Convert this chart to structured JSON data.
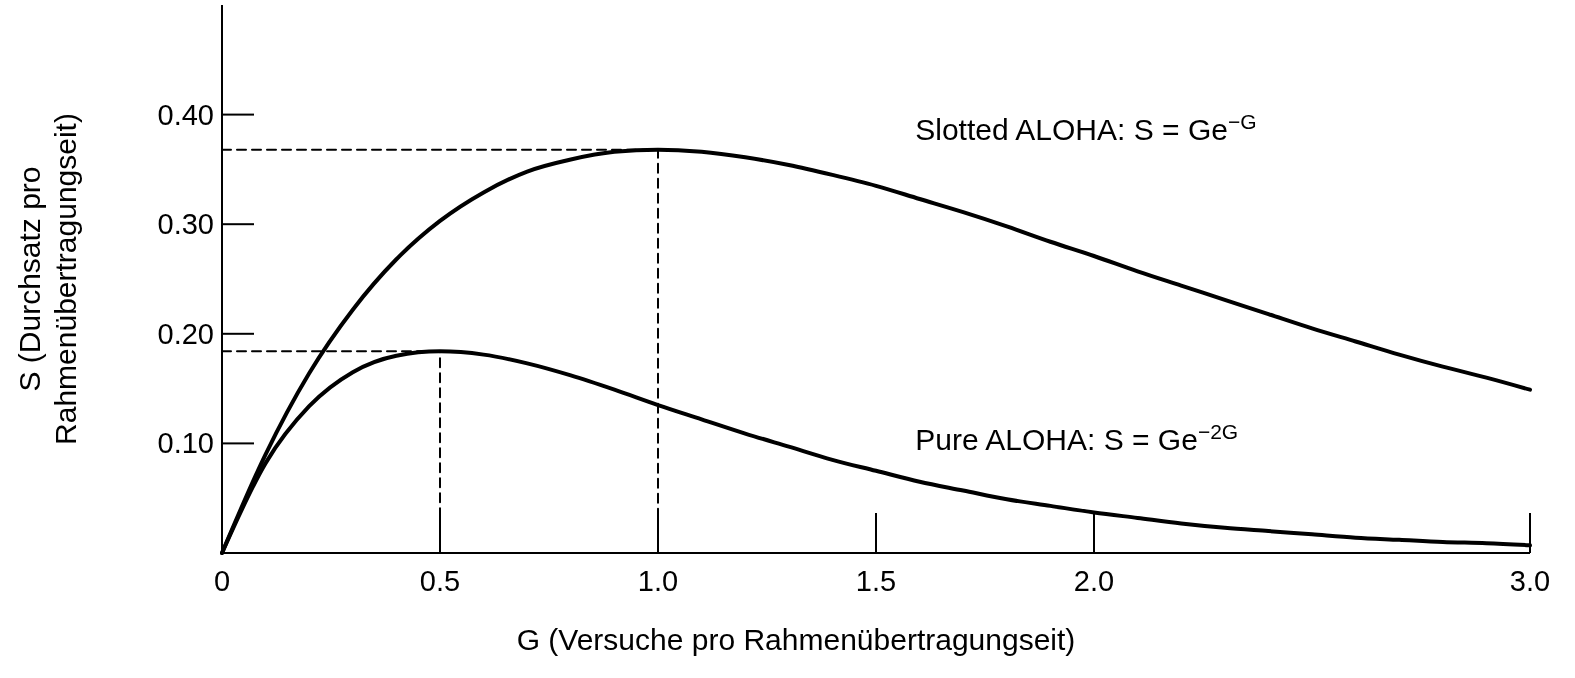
{
  "chart_data": {
    "type": "line",
    "xlabel": "G (Versuche pro Rahmenübertragungseit)",
    "ylabel": "S (Durchsatz pro Rahmenübertragungseit)",
    "xlim": [
      0,
      3.0
    ],
    "ylim": [
      0,
      0.5
    ],
    "xticks": [
      0,
      {
        "value": 0.5,
        "label": "0.5"
      },
      {
        "value": 1.0,
        "label": "1.0"
      },
      {
        "value": 1.5,
        "label": "1.5"
      },
      {
        "value": 2.0,
        "label": "2.0"
      },
      {
        "value": 3.0,
        "label": "3.0"
      }
    ],
    "yticks": [
      {
        "value": 0.1,
        "label": "0.10"
      },
      {
        "value": 0.2,
        "label": "0.20"
      },
      {
        "value": 0.3,
        "label": "0.30"
      },
      {
        "value": 0.4,
        "label": "0.40"
      }
    ],
    "x": [
      0,
      0.1,
      0.2,
      0.3,
      0.4,
      0.5,
      0.6,
      0.7,
      0.8,
      0.9,
      1.0,
      1.1,
      1.2,
      1.3,
      1.4,
      1.5,
      1.6,
      1.7,
      1.8,
      1.9,
      2.0,
      2.1,
      2.2,
      2.3,
      2.4,
      2.5,
      2.6,
      2.7,
      2.8,
      2.9,
      3.0
    ],
    "grid": false,
    "marker": "none",
    "series": [
      {
        "name": "Slotted ALOHA: S = Ge$^{−G}$",
        "color": "#000000",
        "line_style": "solid",
        "values": [
          0,
          0.09,
          0.164,
          0.222,
          0.268,
          0.303,
          0.329,
          0.348,
          0.359,
          0.366,
          0.368,
          0.366,
          0.361,
          0.354,
          0.345,
          0.335,
          0.323,
          0.311,
          0.298,
          0.284,
          0.271,
          0.257,
          0.244,
          0.231,
          0.218,
          0.205,
          0.193,
          0.181,
          0.17,
          0.16,
          0.149
        ]
      },
      {
        "name": "Pure ALOHA: S = Ge$^{−2G}$",
        "color": "#000000",
        "line_style": "solid",
        "values": [
          0,
          0.082,
          0.134,
          0.165,
          0.18,
          0.184,
          0.181,
          0.173,
          0.162,
          0.149,
          0.135,
          0.122,
          0.109,
          0.097,
          0.085,
          0.075,
          0.065,
          0.057,
          0.049,
          0.043,
          0.037,
          0.032,
          0.027,
          0.023,
          0.02,
          0.017,
          0.014,
          0.012,
          0.01,
          0.009,
          0.007
        ]
      },
      {
        "color": "#000000",
        "line_style": "dashed",
        "x": [
          0,
          1.0,
          1.0
        ],
        "values": [
          0.368,
          0.368,
          0
        ]
      },
      {
        "color": "#000000",
        "line_style": "dashed",
        "x": [
          0,
          0.5,
          0.5
        ],
        "values": [
          0.184,
          0.184,
          0
        ]
      }
    ]
  }
}
